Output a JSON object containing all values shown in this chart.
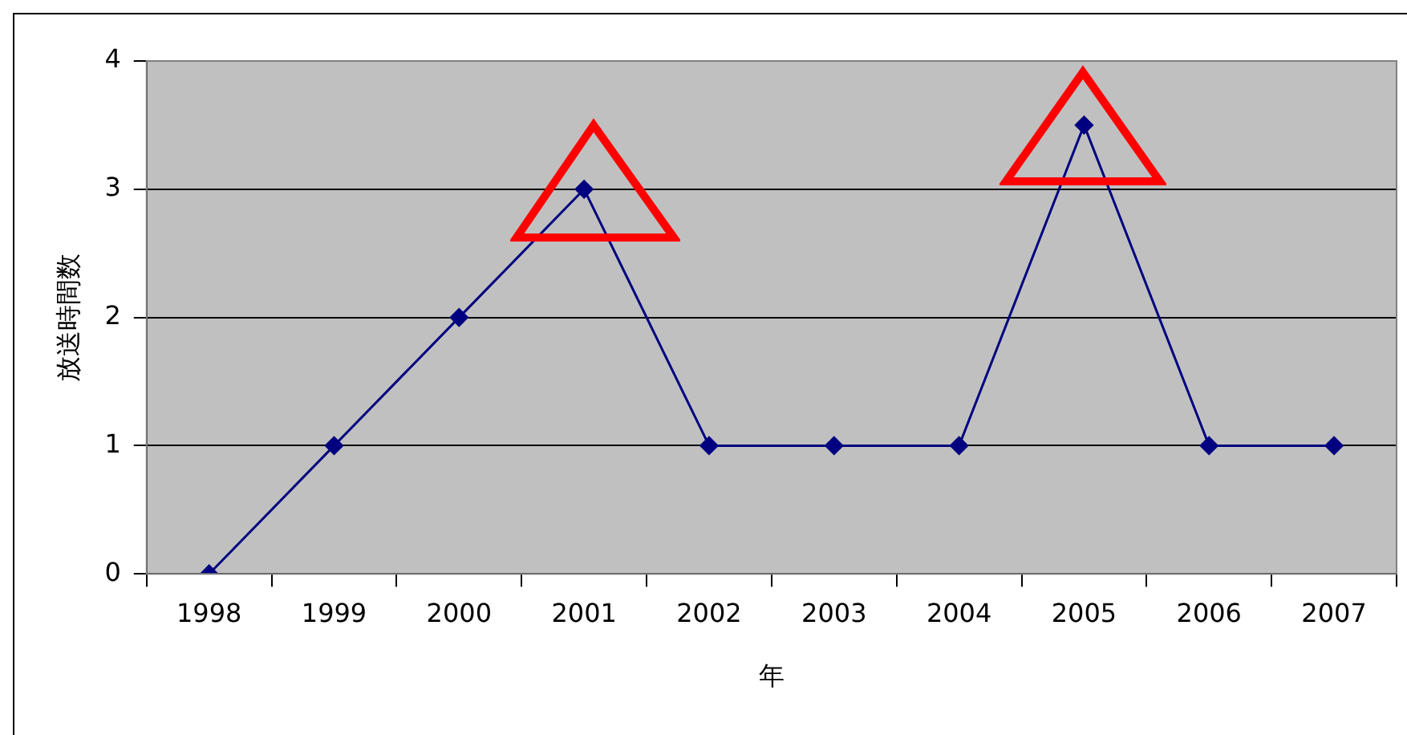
{
  "chart_data": {
    "type": "line",
    "xlabel": "年",
    "ylabel": "放送時間数",
    "categories": [
      "1998",
      "1999",
      "2000",
      "2001",
      "2002",
      "2003",
      "2004",
      "2005",
      "2006",
      "2007"
    ],
    "series": [
      {
        "color": "#000080",
        "values": [
          0,
          1,
          2,
          3,
          1,
          1,
          1,
          3.5,
          1,
          1
        ]
      }
    ],
    "ylim": [
      0,
      4
    ],
    "yticks": [
      0,
      1,
      2,
      3,
      4
    ],
    "grid": "y",
    "legend": false,
    "marker": "diamond",
    "line_style": "solid"
  }
}
